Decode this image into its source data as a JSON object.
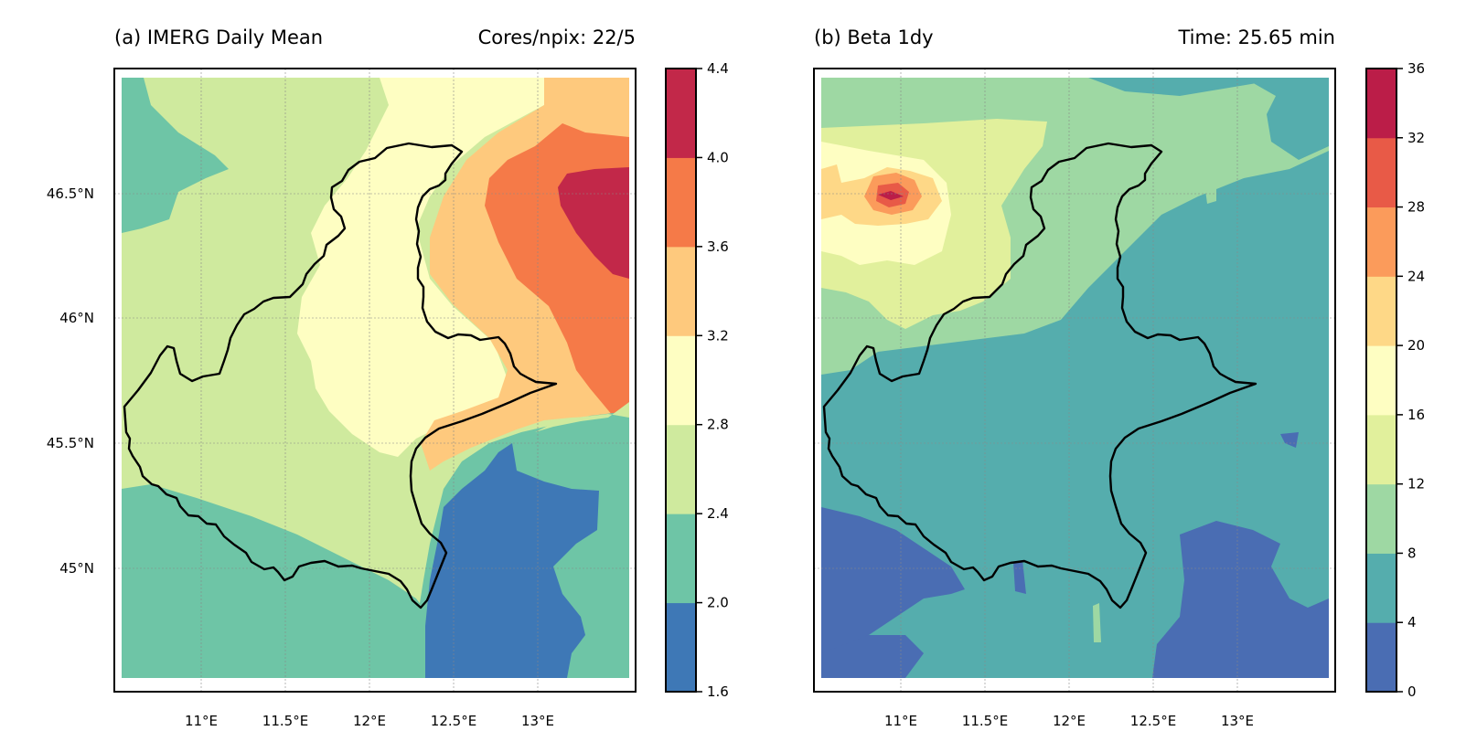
{
  "panels": [
    {
      "title_left": "(a) IMERG Daily Mean",
      "title_right": "Cores/npix: 22/5",
      "lat_ticks": [
        "46.5°N",
        "46°N",
        "45.5°N",
        "45°N"
      ],
      "lon_ticks": [
        "11°E",
        "11.5°E",
        "12°E",
        "12.5°E",
        "13°E"
      ],
      "colorbar_ticks": [
        "1.6",
        "2.0",
        "2.4",
        "2.8",
        "3.2",
        "3.6",
        "4.0",
        "4.4"
      ],
      "colors": [
        "#3e78b6",
        "#6ec5a6",
        "#cfea9e",
        "#fefec2",
        "#fec97d",
        "#f57a48",
        "#c22849"
      ]
    },
    {
      "title_left": "(b) Beta 1dy",
      "title_right": "Time: 25.65 min",
      "lat_ticks": [],
      "lon_ticks": [
        "11°E",
        "11.5°E",
        "12°E",
        "12.5°E",
        "13°E"
      ],
      "colorbar_ticks": [
        "0",
        "4",
        "8",
        "12",
        "16",
        "20",
        "24",
        "28",
        "32",
        "36"
      ],
      "colors": [
        "#4a6db3",
        "#55adad",
        "#9ed8a3",
        "#e1f09c",
        "#fefec2",
        "#fed887",
        "#fb9b5b",
        "#e85a47",
        "#bb1d48"
      ]
    }
  ]
}
